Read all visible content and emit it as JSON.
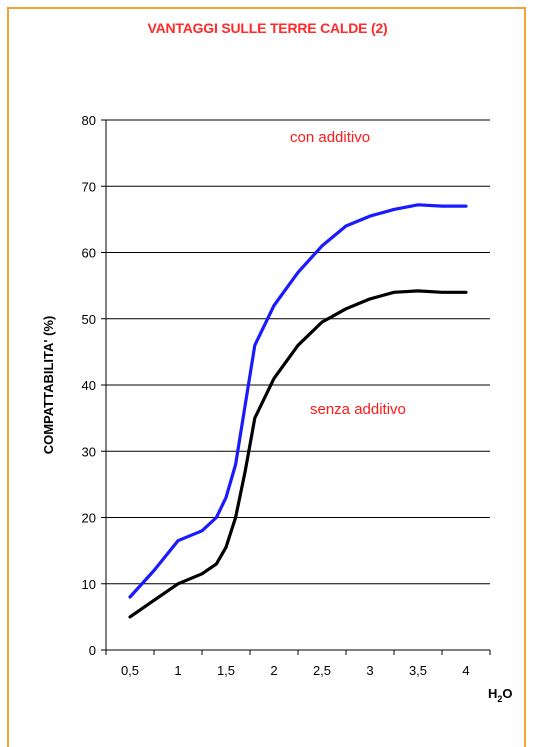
{
  "chart_data": {
    "type": "line",
    "title": "VANTAGGI SULLE TERRE CALDE (2)",
    "xlabel": "H2O",
    "xlabel_main": "H",
    "xlabel_sub": "2",
    "xlabel_tail": "O",
    "ylabel": "COMPATTABILITA' (%)",
    "ylim": [
      0,
      80
    ],
    "yticks": [
      0,
      10,
      20,
      30,
      40,
      50,
      60,
      70,
      80
    ],
    "xlim": [
      0.25,
      4.25
    ],
    "xticks": [
      0.5,
      1,
      1.5,
      2,
      2.5,
      3,
      3.5,
      4
    ],
    "xtick_labels": [
      "0,5",
      "1",
      "1,5",
      "2",
      "2,5",
      "3",
      "3,5",
      "4"
    ],
    "grid": "horizontal",
    "series": [
      {
        "name": "con additivo",
        "color": "#1a1aff",
        "x": [
          0.5,
          0.75,
          1.0,
          1.25,
          1.4,
          1.5,
          1.6,
          1.7,
          1.8,
          2.0,
          2.25,
          2.5,
          2.75,
          3.0,
          3.25,
          3.5,
          3.75,
          4.0
        ],
        "y": [
          8,
          12,
          16.5,
          18,
          20,
          23,
          28,
          37,
          46,
          52,
          57,
          61,
          64,
          65.5,
          66.5,
          67.2,
          67,
          67
        ]
      },
      {
        "name": "senza additivo",
        "color": "#000000",
        "x": [
          0.5,
          0.75,
          1.0,
          1.25,
          1.4,
          1.5,
          1.6,
          1.7,
          1.8,
          2.0,
          2.25,
          2.5,
          2.75,
          3.0,
          3.25,
          3.5,
          3.75,
          4.0
        ],
        "y": [
          5,
          7.5,
          10,
          11.5,
          13,
          15.5,
          20,
          27,
          35,
          41,
          46,
          49.5,
          51.5,
          53,
          54,
          54.2,
          54,
          54
        ]
      }
    ]
  }
}
